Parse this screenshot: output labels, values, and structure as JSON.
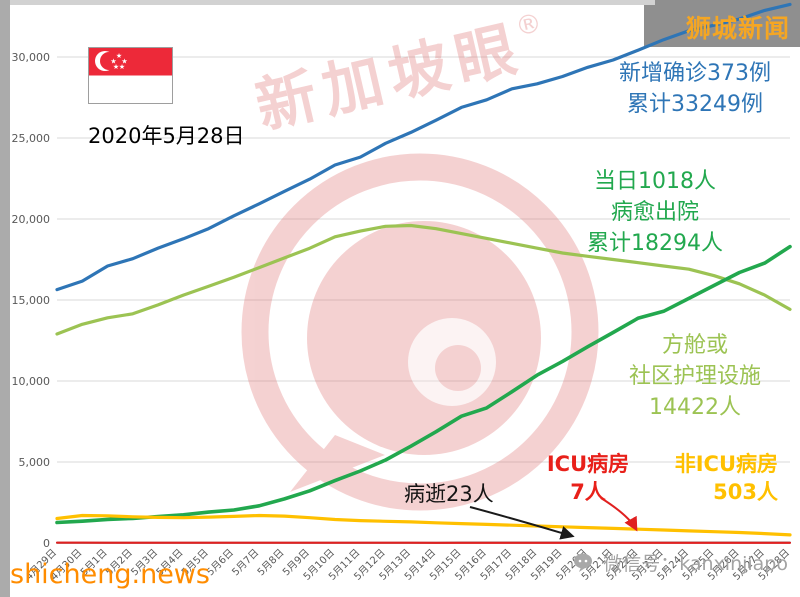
{
  "header": {
    "brand": "狮城新闻",
    "date": "2020年5月28日"
  },
  "watermark": {
    "text": "新加坡眼",
    "reg": "®"
  },
  "footer": {
    "site": "shicheng.news",
    "wechat": "微信号：kanxinjiapo"
  },
  "colors": {
    "confirmed_blue": "#2e75b6",
    "community_light_green": "#9cc353",
    "discharged_green": "#22a84e",
    "non_icu_yellow": "#ffc000",
    "icu_red": "#e02020",
    "deaths_dark_red": "#7a2e2e",
    "brand_orange": "#f5a623",
    "site_orange": "#ff8c00"
  },
  "annotations": {
    "confirmed": {
      "line1": "新增确诊373例",
      "line2": "累计33249例",
      "color": "#2e75b6"
    },
    "discharged": {
      "line1": "当日1018人",
      "line2": "病愈出院",
      "line3": "累计18294人",
      "color": "#22a84e"
    },
    "community": {
      "line1": "方舱或",
      "line2": "社区护理设施",
      "line3": "14422人",
      "color": "#9cc353"
    },
    "icu": {
      "line1": "ICU病房",
      "line2": "7人",
      "color": "#e02020"
    },
    "non_icu": {
      "line1": "非ICU病房",
      "line2": "503人",
      "color": "#ffc000"
    },
    "deaths": {
      "line1": "病逝23人",
      "color": "#1a1a1a"
    }
  },
  "chart_data": {
    "type": "line",
    "x": [
      "4月29日",
      "4月30日",
      "5月1日",
      "5月2日",
      "5月3日",
      "5月4日",
      "5月5日",
      "5月6日",
      "5月7日",
      "5月8日",
      "5月9日",
      "5月10日",
      "5月11日",
      "5月12日",
      "5月13日",
      "5月14日",
      "5月15日",
      "5月16日",
      "5月17日",
      "5月18日",
      "5月19日",
      "5月20日",
      "5月21日",
      "5月22日",
      "5月23日",
      "5月24日",
      "5月25日",
      "5月26日",
      "5月27日",
      "5月28日"
    ],
    "ylim": [
      0,
      30000
    ],
    "ytick_step": 5000,
    "ytick_labels": [
      "0",
      "5,000",
      "10,000",
      "15,000",
      "20,000",
      "25,000",
      "30,000"
    ],
    "grid": true,
    "legend": "none",
    "series": [
      {
        "key": "confirmed-cumulative",
        "name": "累计确诊",
        "color": "#2e75b6",
        "width": 3.2,
        "values": [
          15641,
          16169,
          17101,
          17548,
          18205,
          18778,
          19410,
          20198,
          20939,
          21707,
          22460,
          23336,
          23822,
          24671,
          25346,
          26098,
          26891,
          27356,
          28038,
          28343,
          28794,
          29364,
          29812,
          30426,
          31068,
          31616,
          31960,
          32343,
          32876,
          33249
        ]
      },
      {
        "key": "community-care",
        "name": "方舱或社区护理设施",
        "color": "#9cc353",
        "width": 3.2,
        "values": [
          12900,
          13500,
          13900,
          14150,
          14700,
          15300,
          15850,
          16400,
          17000,
          17600,
          18200,
          18900,
          19250,
          19550,
          19600,
          19400,
          19100,
          18800,
          18500,
          18200,
          17900,
          17700,
          17500,
          17300,
          17100,
          16900,
          16500,
          16000,
          15300,
          14422
        ]
      },
      {
        "key": "discharged-cumulative",
        "name": "累计病愈出院",
        "color": "#22a84e",
        "width": 3.6,
        "values": [
          1268,
          1347,
          1457,
          1519,
          1634,
          1740,
          1909,
          2040,
          2296,
          2721,
          3225,
          3851,
          4443,
          5123,
          5973,
          6871,
          7827,
          8342,
          9340,
          10365,
          11207,
          12117,
          12995,
          13882,
          14300,
          15100,
          15900,
          16700,
          17276,
          18294
        ]
      },
      {
        "key": "non-icu-ward",
        "name": "非ICU病房",
        "color": "#ffc000",
        "width": 3.2,
        "values": [
          1514,
          1700,
          1680,
          1620,
          1580,
          1560,
          1600,
          1640,
          1700,
          1660,
          1560,
          1450,
          1380,
          1340,
          1300,
          1250,
          1200,
          1150,
          1100,
          1050,
          1000,
          950,
          900,
          850,
          800,
          750,
          700,
          650,
          580,
          503
        ]
      },
      {
        "key": "deaths-cumulative",
        "name": "病逝",
        "color": "#7a2e2e",
        "width": 2,
        "values": [
          14,
          15,
          16,
          16,
          17,
          17,
          18,
          18,
          18,
          20,
          20,
          21,
          21,
          21,
          21,
          21,
          22,
          22,
          22,
          22,
          22,
          23,
          23,
          23,
          23,
          23,
          23,
          23,
          23,
          23
        ]
      },
      {
        "key": "icu-ward",
        "name": "ICU病房",
        "color": "#e02020",
        "width": 2,
        "values": [
          23,
          22,
          21,
          20,
          19,
          18,
          17,
          16,
          15,
          14,
          13,
          12,
          11,
          10,
          10,
          9,
          9,
          8,
          8,
          8,
          7,
          7,
          7,
          7,
          7,
          7,
          7,
          7,
          7,
          7
        ]
      }
    ]
  }
}
